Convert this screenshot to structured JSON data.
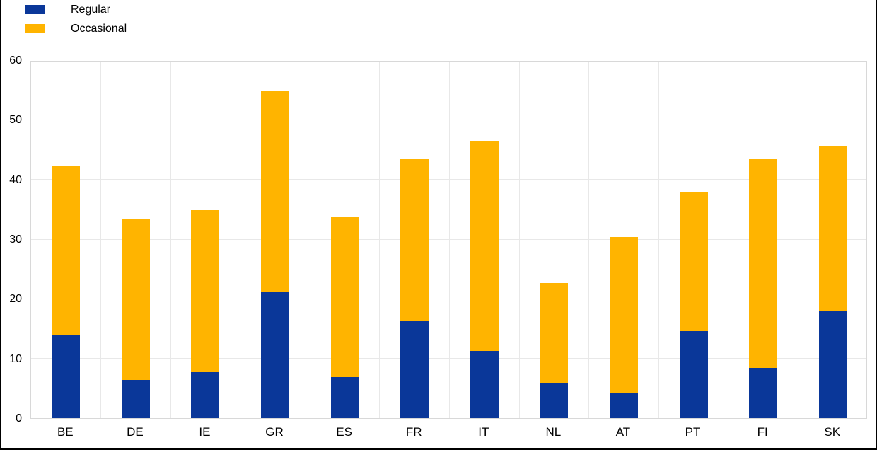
{
  "legend": {
    "items": [
      {
        "label": "Regular",
        "color": "#0A3799",
        "swatch_name": "regular-swatch"
      },
      {
        "label": "Occasional",
        "color": "#FFB400",
        "swatch_name": "occasional-swatch"
      }
    ]
  },
  "chart_data": {
    "type": "bar",
    "stacked": true,
    "title": "",
    "xlabel": "",
    "ylabel": "",
    "categories": [
      "BE",
      "DE",
      "IE",
      "GR",
      "ES",
      "FR",
      "IT",
      "NL",
      "AT",
      "PT",
      "FI",
      "SK"
    ],
    "series": [
      {
        "name": "Regular",
        "color": "#0A3799",
        "values": [
          14.0,
          6.4,
          7.7,
          21.1,
          6.9,
          16.4,
          11.3,
          5.9,
          4.3,
          14.6,
          8.4,
          18.0
        ]
      },
      {
        "name": "Occasional",
        "color": "#FFB400",
        "values": [
          28.3,
          27.0,
          27.2,
          33.7,
          26.9,
          27.0,
          35.2,
          16.8,
          26.0,
          23.4,
          35.0,
          27.6
        ]
      }
    ],
    "stacked_totals": [
      42.3,
      33.4,
      34.9,
      54.8,
      33.8,
      43.4,
      46.5,
      22.7,
      30.3,
      38.0,
      43.4,
      45.6
    ],
    "ylim": [
      0,
      60
    ],
    "yticks": [
      0,
      10,
      20,
      30,
      40,
      50,
      60
    ],
    "grid": true,
    "legend_position": "top-left",
    "colors": {
      "background": "#FFFFFF",
      "gridline": "#E8E8E8",
      "plot_border": "#D8D8D8",
      "frame_border": "#000000",
      "text": "#000000"
    }
  }
}
